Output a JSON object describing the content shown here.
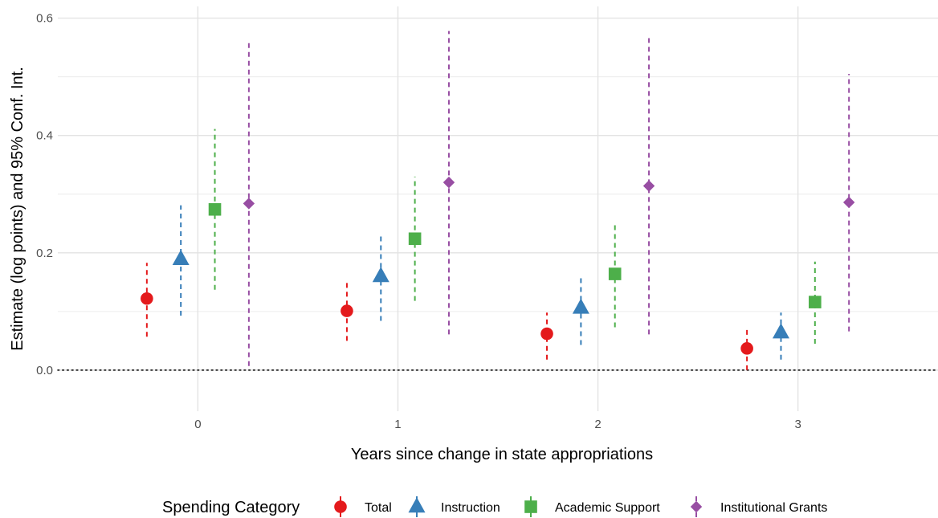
{
  "chart_data": {
    "type": "scatter",
    "subtype": "point-estimates-with-95-confidence-intervals",
    "xlabel": "Years since change in state appropriations",
    "ylabel": "Estimate (log points) and 95% Conf. Int.",
    "categories": [
      "0",
      "1",
      "2",
      "3"
    ],
    "y_ticks": [
      "0.0",
      "0.2",
      "0.4",
      "0.6"
    ],
    "ylim": [
      -0.07,
      0.62
    ],
    "xlim": [
      -0.7,
      3.7
    ],
    "grid": true,
    "reference_line": {
      "y": 0,
      "style": "dotted"
    },
    "legend": {
      "title": "Spending Category",
      "position": "bottom"
    },
    "series": [
      {
        "name": "Total",
        "color": "#e41a1c",
        "marker": "circle",
        "estimate": [
          0.122,
          0.101,
          0.062,
          0.037
        ],
        "ci_low": [
          0.057,
          0.05,
          0.018,
          0.0
        ],
        "ci_high": [
          0.183,
          0.153,
          0.098,
          0.073
        ]
      },
      {
        "name": "Instruction",
        "color": "#377eb8",
        "marker": "triangle",
        "estimate": [
          0.189,
          0.16,
          0.106,
          0.064
        ],
        "ci_low": [
          0.093,
          0.084,
          0.043,
          0.018
        ],
        "ci_high": [
          0.281,
          0.23,
          0.16,
          0.098
        ]
      },
      {
        "name": "Academic Support",
        "color": "#4daf4a",
        "marker": "square",
        "estimate": [
          0.274,
          0.224,
          0.164,
          0.116
        ],
        "ci_low": [
          0.137,
          0.118,
          0.073,
          0.045
        ],
        "ci_high": [
          0.411,
          0.33,
          0.252,
          0.185
        ]
      },
      {
        "name": "Institutional Grants",
        "color": "#984ea3",
        "marker": "diamond",
        "estimate": [
          0.284,
          0.32,
          0.314,
          0.286
        ],
        "ci_low": [
          0.007,
          0.061,
          0.061,
          0.066
        ],
        "ci_high": [
          0.558,
          0.578,
          0.566,
          0.505
        ]
      }
    ]
  }
}
